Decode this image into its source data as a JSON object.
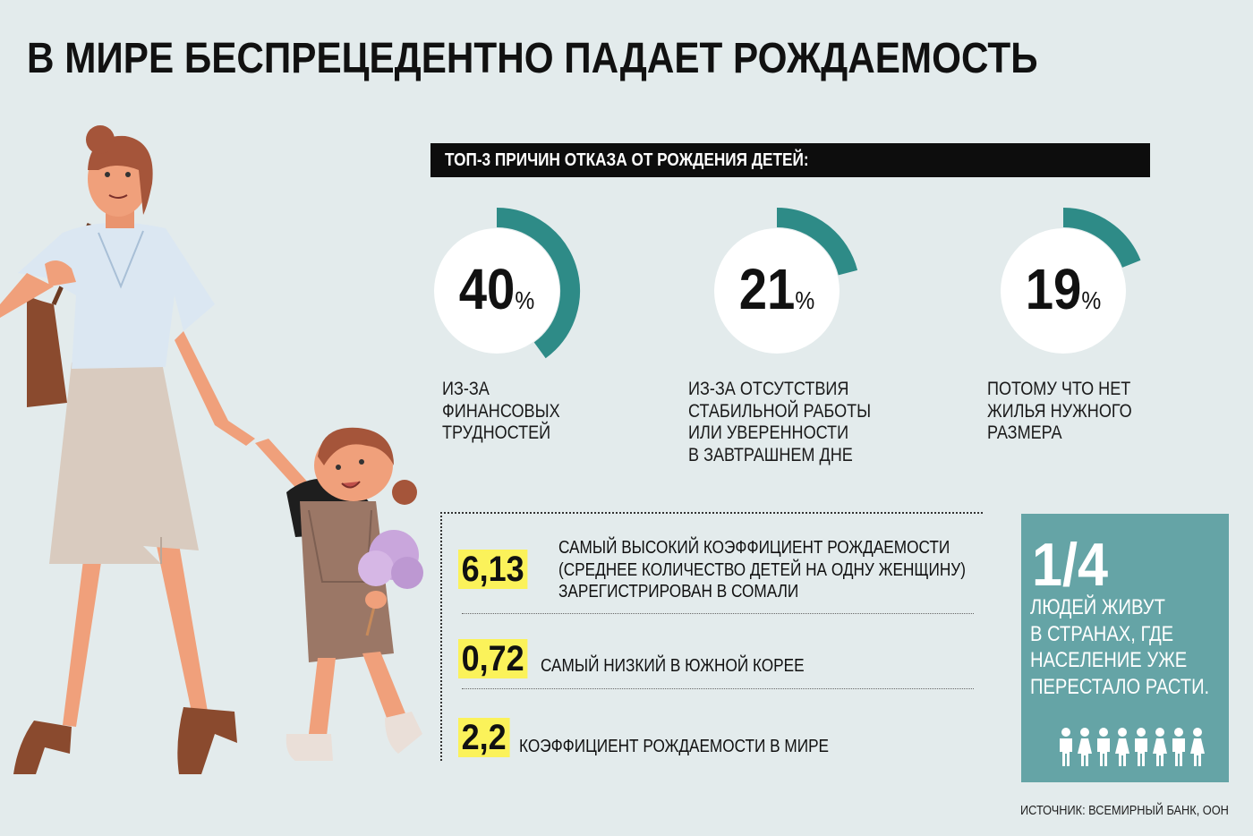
{
  "title": "В МИРЕ БЕСПРЕЦЕДЕНТНО ПАДАЕТ РОЖДАЕМОСТЬ",
  "reasons": {
    "header": "ТОП-3 ПРИЧИН ОТКАЗА ОТ РОЖДЕНИЯ ДЕТЕЙ:",
    "items": [
      {
        "value": "40",
        "unit": "%",
        "fraction": 0.4,
        "text_lines": [
          "ИЗ-ЗА",
          "ФИНАНСОВЫХ",
          "ТРУДНОСТЕЙ"
        ]
      },
      {
        "value": "21",
        "unit": "%",
        "fraction": 0.21,
        "text_lines": [
          "ИЗ-ЗА ОТСУТСТВИЯ",
          "СТАБИЛЬНОЙ РАБОТЫ",
          "ИЛИ УВЕРЕННОСТИ",
          "В ЗАВТРАШНЕМ ДНЕ"
        ]
      },
      {
        "value": "19",
        "unit": "%",
        "fraction": 0.19,
        "text_lines": [
          "ПОТОМУ ЧТО НЕТ",
          "ЖИЛЬЯ НУЖНОГО",
          "РАЗМЕРА"
        ]
      }
    ]
  },
  "facts": [
    {
      "value": "6,13",
      "text_lines": [
        "САМЫЙ ВЫСОКИЙ КОЭФФИЦИЕНТ РОЖДАЕМОСТИ",
        "(СРЕДНЕЕ КОЛИЧЕСТВО ДЕТЕЙ НА ОДНУ ЖЕНЩИНУ)",
        "ЗАРЕГИСТРИРОВАН В СОМАЛИ"
      ]
    },
    {
      "value": "0,72",
      "text_lines": [
        "САМЫЙ НИЗКИЙ В ЮЖНОЙ КОРЕЕ"
      ]
    },
    {
      "value": "2,2",
      "text_lines": [
        "КОЭФФИЦИЕНТ РОЖДАЕМОСТИ В МИРЕ"
      ]
    }
  ],
  "quarter": {
    "value": "1/4",
    "text_lines": [
      "ЛЮДЕЙ ЖИВУТ",
      "В СТРАНАХ, ГДЕ",
      "НАСЕЛЕНИЕ УЖЕ",
      "ПЕРЕСТАЛО РАСТИ."
    ],
    "people_icon": "person-icon",
    "people_count": 8
  },
  "source": "ИСТОЧНИК: ВСЕМИРНЫЙ БАНК, ООН",
  "colors": {
    "accent": "#2e8b87",
    "highlight": "#fbf25a",
    "panel": "#65a4a6",
    "background": "#e3ebec"
  }
}
